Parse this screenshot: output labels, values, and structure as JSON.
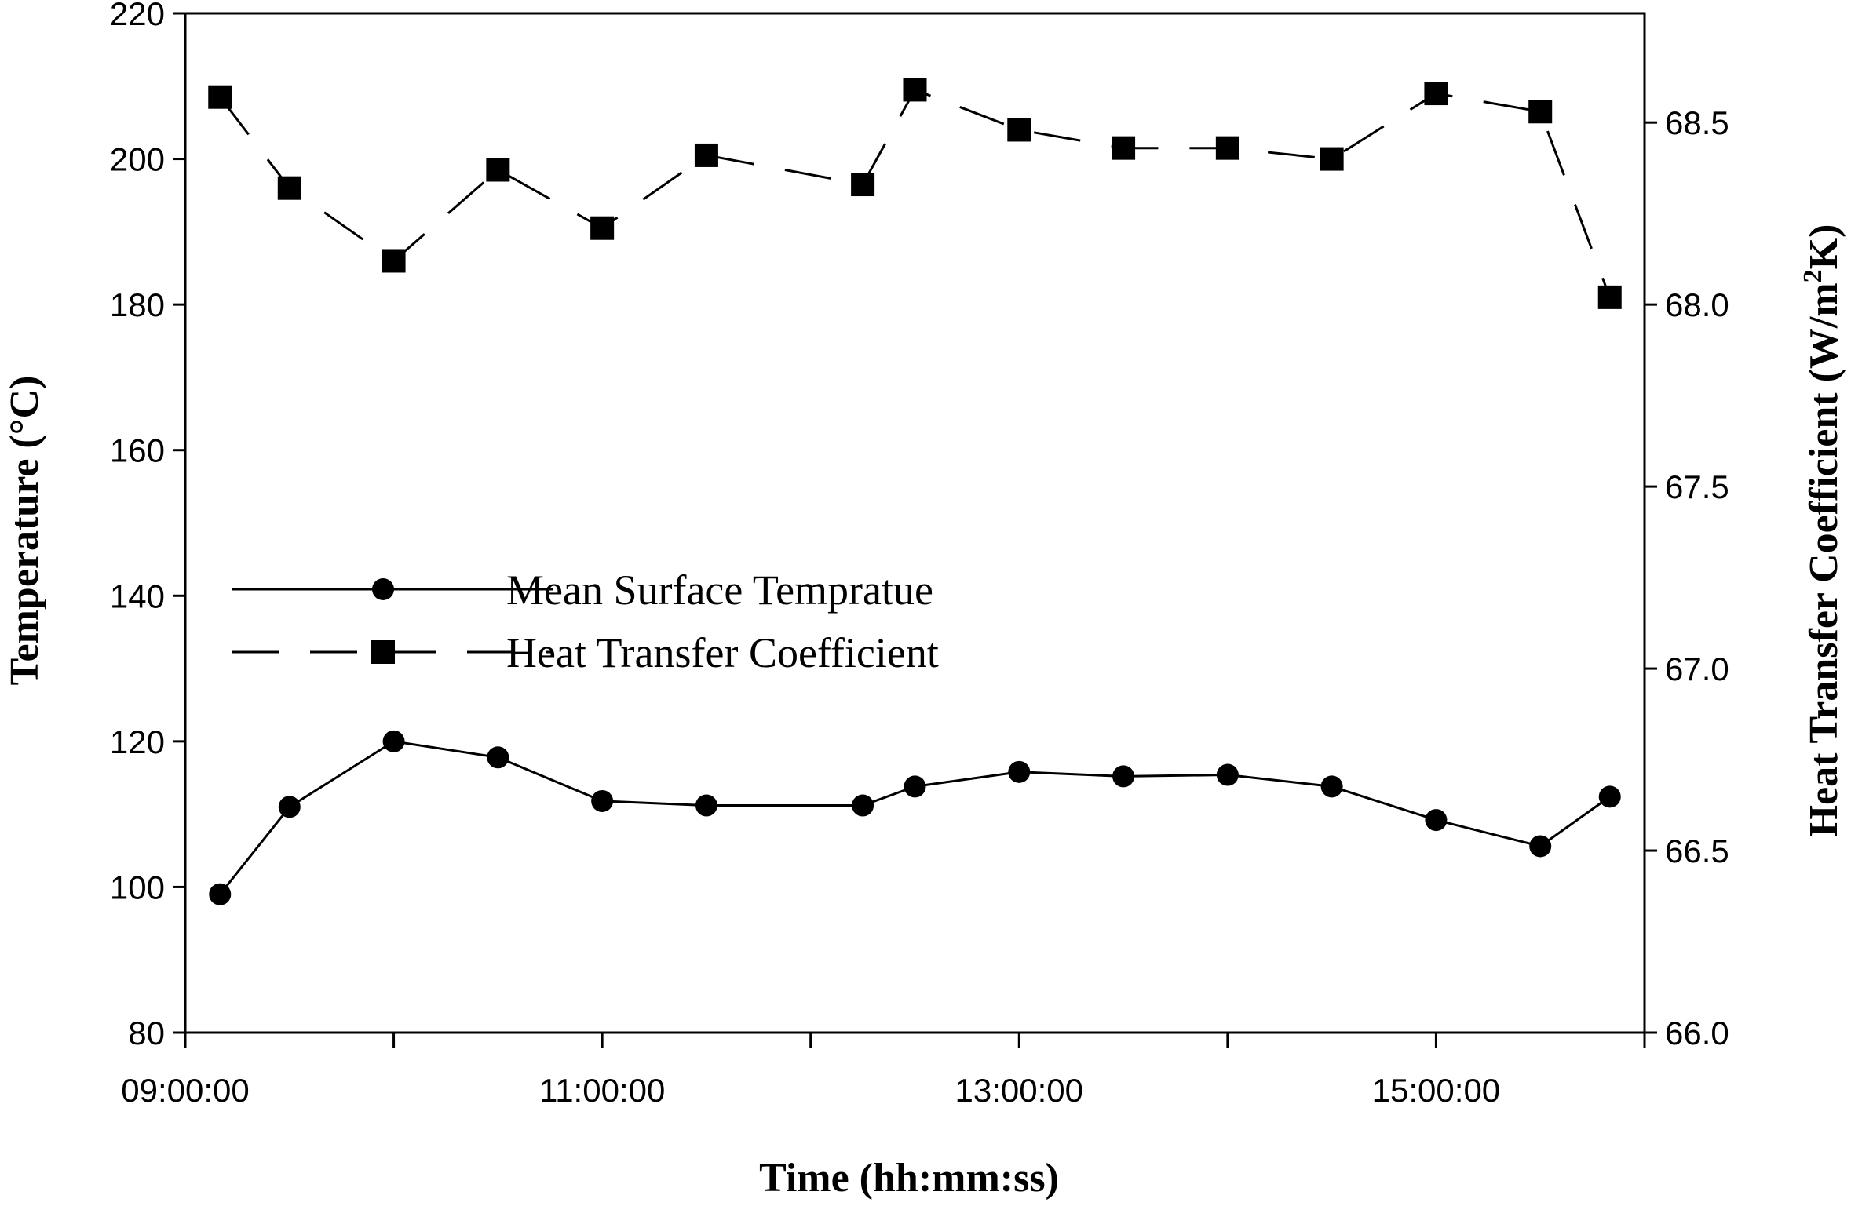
{
  "chart_data": {
    "type": "line",
    "x_axis": {
      "label": "Time (hh:mm:ss)",
      "range": [
        "09:00:00",
        "16:00:00"
      ],
      "major_ticks": [
        "09:00:00",
        "11:00:00",
        "13:00:00",
        "15:00:00"
      ],
      "minor_ticks": [
        "10:00:00",
        "12:00:00",
        "14:00:00",
        "16:00:00"
      ]
    },
    "y_axis_left": {
      "label": "Temperature (°C)",
      "range": [
        80,
        220
      ],
      "ticks": [
        "80",
        "100",
        "120",
        "140",
        "160",
        "180",
        "200",
        "220"
      ]
    },
    "y_axis_right": {
      "label_main": "Heat Transfer Coefficient (W/m",
      "label_sup": "2",
      "label_end": "K)",
      "range": [
        66.0,
        68.8
      ],
      "ticks": [
        "66.0",
        "66.5",
        "67.0",
        "67.5",
        "68.0",
        "68.5"
      ]
    },
    "legend": {
      "placement": "center-left",
      "entries": [
        "Mean Surface Tempratue",
        "Heat Transfer Coefficient"
      ]
    },
    "grid": false,
    "series": [
      {
        "name": "Mean Surface Tempratue",
        "axis": "left",
        "marker": "circle",
        "line": "solid",
        "points": [
          [
            "09:10:00",
            99
          ],
          [
            "09:30:00",
            111
          ],
          [
            "10:00:00",
            120
          ],
          [
            "10:30:00",
            117.8
          ],
          [
            "11:00:00",
            111.8
          ],
          [
            "11:30:00",
            111.2
          ],
          [
            "12:15:00",
            111.2
          ],
          [
            "12:30:00",
            113.8
          ],
          [
            "13:00:00",
            115.8
          ],
          [
            "13:30:00",
            115.2
          ],
          [
            "14:00:00",
            115.4
          ],
          [
            "14:30:00",
            113.8
          ],
          [
            "15:00:00",
            109.2
          ],
          [
            "15:30:00",
            105.6
          ],
          [
            "15:50:00",
            112.4
          ]
        ]
      },
      {
        "name": "Heat Transfer Coefficient",
        "axis": "right",
        "marker": "square",
        "line": "dashed",
        "points": [
          [
            "09:10:00",
            68.57
          ],
          [
            "09:30:00",
            68.32
          ],
          [
            "10:00:00",
            68.12
          ],
          [
            "10:30:00",
            68.37
          ],
          [
            "11:00:00",
            68.21
          ],
          [
            "11:30:00",
            68.41
          ],
          [
            "12:15:00",
            68.33
          ],
          [
            "12:30:00",
            68.59
          ],
          [
            "13:00:00",
            68.48
          ],
          [
            "13:30:00",
            68.43
          ],
          [
            "14:00:00",
            68.43
          ],
          [
            "14:30:00",
            68.4
          ],
          [
            "15:00:00",
            68.58
          ],
          [
            "15:30:00",
            68.53
          ],
          [
            "15:50:00",
            68.02
          ]
        ]
      }
    ]
  }
}
